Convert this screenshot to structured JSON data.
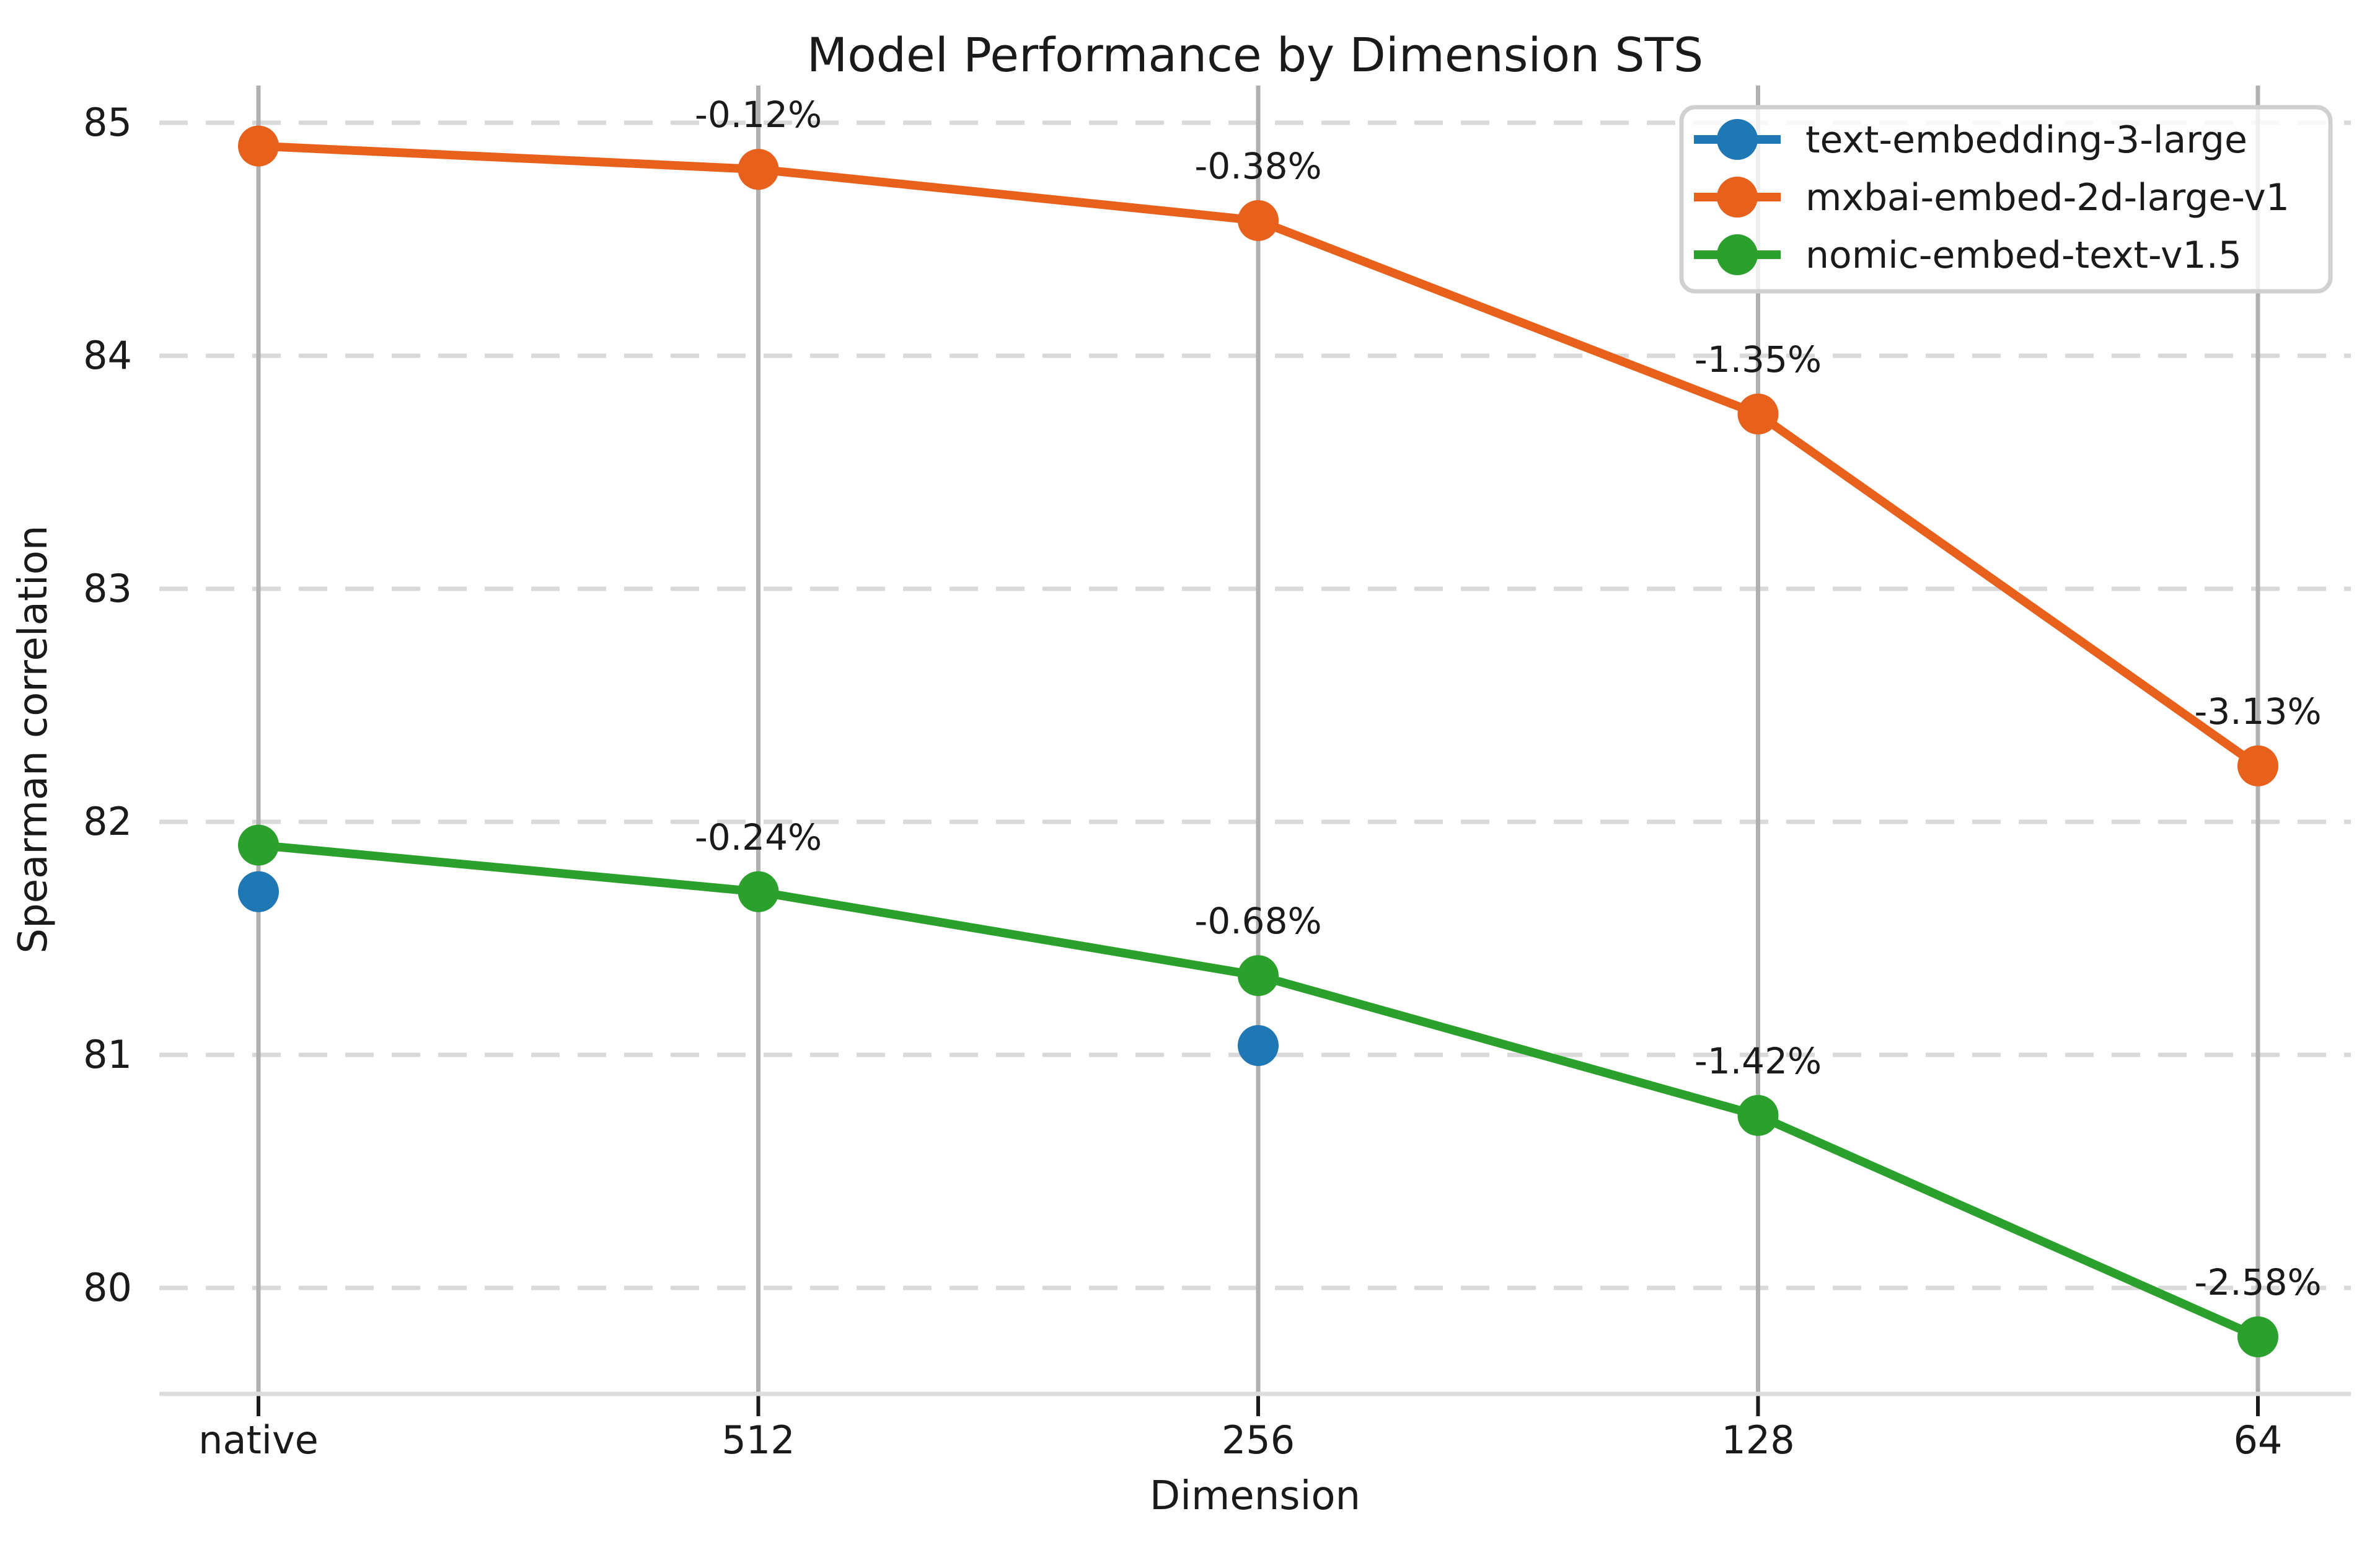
{
  "title": "Model Performance by Dimension STS",
  "axes": {
    "xlabel": "Dimension",
    "ylabel": "Spearman correlation",
    "x_tick_labels": [
      "native",
      "512",
      "256",
      "128",
      "64"
    ],
    "y_tick_labels": [
      "85",
      "84",
      "83",
      "82",
      "81",
      "80"
    ]
  },
  "colors": {
    "blue_series": "#1f77b4",
    "orange_series": "#e8611c",
    "green_series": "#2ca02c",
    "grid_dashed": "#d9d9d9",
    "grid_vertical": "#b0b0b0",
    "spine": "#dcdcdc",
    "tick_mark": "#1a1a1a",
    "legend_border": "#d0d0d0",
    "legend_background": "rgba(255,255,255,0.8)",
    "text": "#1a1a1a"
  },
  "legend": {
    "position": "upper right",
    "entries": [
      {
        "label": "text-embedding-3-large",
        "color": "#1f77b4"
      },
      {
        "label": "mxbai-embed-2d-large-v1",
        "color": "#e8611c"
      },
      {
        "label": "nomic-embed-text-v1.5",
        "color": "#2ca02c"
      }
    ]
  },
  "chart_data": {
    "type": "line",
    "title": "Model Performance by Dimension STS",
    "xlabel": "Dimension",
    "ylabel": "Spearman correlation",
    "categories": [
      "native",
      "512",
      "256",
      "128",
      "64"
    ],
    "y_ticks": [
      85,
      84,
      83,
      82,
      81,
      80
    ],
    "ylim": [
      79.45,
      85.16
    ],
    "grid": true,
    "legend_position": "upper right",
    "series": [
      {
        "name": "text-embedding-3-large",
        "color": "#1f77b4",
        "values": [
          81.7,
          null,
          81.04,
          null,
          null
        ],
        "annotations": [
          null,
          null,
          null,
          null,
          null
        ]
      },
      {
        "name": "mxbai-embed-2d-large-v1",
        "color": "#e8611c",
        "values": [
          84.9,
          84.8,
          84.58,
          83.75,
          82.24
        ],
        "annotations": [
          null,
          "-0.12%",
          "-0.38%",
          "-1.35%",
          "-3.13%"
        ]
      },
      {
        "name": "nomic-embed-text-v1.5",
        "color": "#2ca02c",
        "values": [
          81.9,
          81.7,
          81.34,
          80.74,
          79.79
        ],
        "annotations": [
          null,
          "-0.24%",
          "-0.68%",
          "-1.42%",
          "-2.58%"
        ]
      }
    ]
  }
}
